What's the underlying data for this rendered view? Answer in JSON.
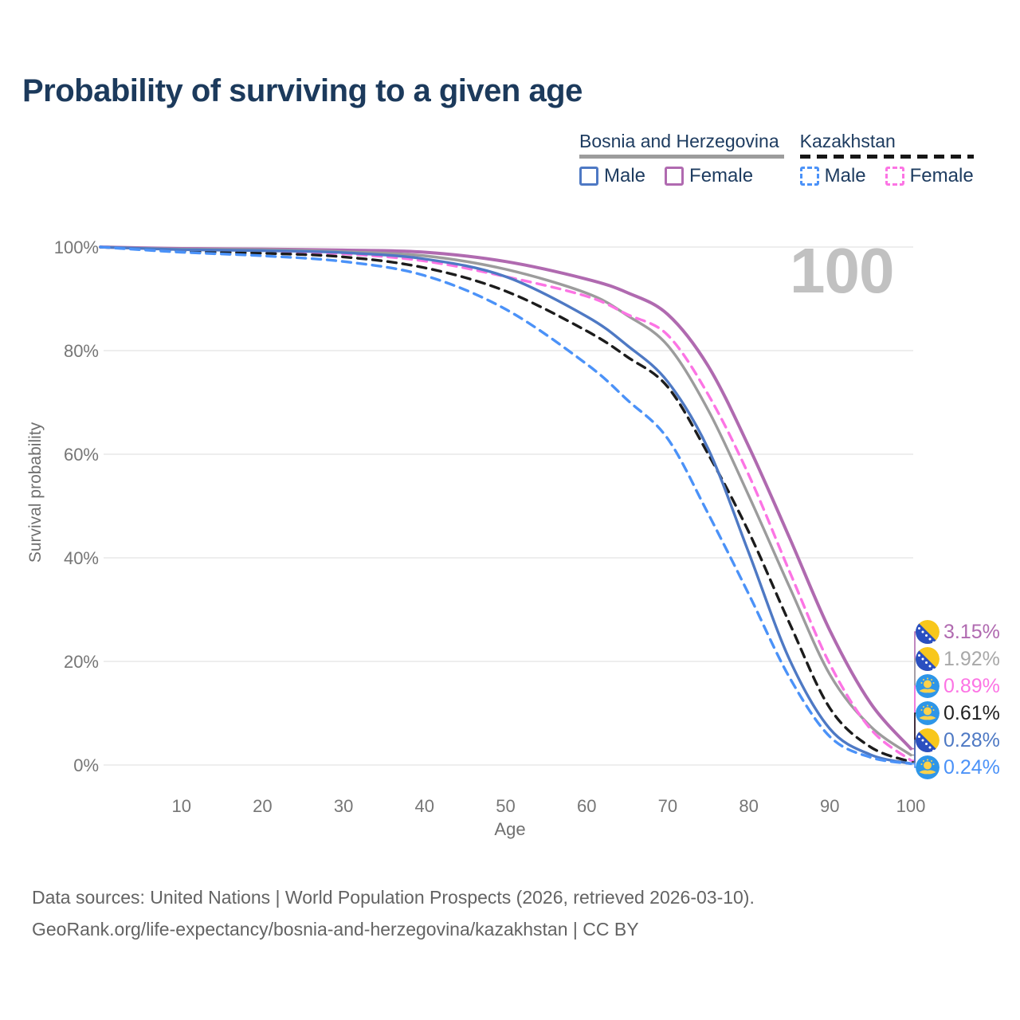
{
  "page": {
    "title": "Probability of surviving to a given age"
  },
  "legend": {
    "groups": [
      {
        "title": "Bosnia and Herzegovina",
        "line_style": "solid",
        "line_color": "#9c9c9c",
        "items": [
          {
            "label": "Male",
            "color": "#4e79c4",
            "dash": false
          },
          {
            "label": "Female",
            "color": "#b06ab0",
            "dash": false
          }
        ]
      },
      {
        "title": "Kazakhstan",
        "line_style": "dashed",
        "line_color": "#161616",
        "items": [
          {
            "label": "Male",
            "color": "#4b92f8",
            "dash": true
          },
          {
            "label": "Female",
            "color": "#fc74e4",
            "dash": true
          }
        ]
      }
    ]
  },
  "chart_data": {
    "type": "line",
    "title": "Probability of surviving to a given age",
    "xlabel": "Age",
    "ylabel": "Survival probability",
    "watermark": "100",
    "xlim": [
      0,
      110
    ],
    "ylim": [
      0,
      100
    ],
    "xticks": [
      10,
      20,
      30,
      40,
      50,
      60,
      70,
      80,
      90,
      100
    ],
    "yticks": [
      0,
      20,
      40,
      60,
      80,
      100
    ],
    "grid": "horizontal",
    "legend_position": "top-right",
    "x": [
      0,
      10,
      20,
      30,
      40,
      50,
      60,
      65,
      70,
      75,
      80,
      85,
      90,
      95,
      100
    ],
    "series": [
      {
        "name": "Bosnia and Herzegovina — Female",
        "color": "#b06ab0",
        "dash": "solid",
        "width": 4,
        "end_label": "3.15%",
        "values": [
          100,
          99.7,
          99.6,
          99.4,
          99.0,
          97.2,
          93.8,
          91.2,
          87.0,
          77.0,
          61.5,
          44.0,
          26.0,
          12.0,
          3.15
        ]
      },
      {
        "name": "Bosnia and Herzegovina — Both sexes",
        "color": "#9c9c9c",
        "dash": "solid",
        "width": 3.4,
        "end_label": "1.92%",
        "values": [
          100,
          99.6,
          99.5,
          99.1,
          98.3,
          95.7,
          91.1,
          86.8,
          81.0,
          68.5,
          52.0,
          34.5,
          17.5,
          7.5,
          1.92
        ]
      },
      {
        "name": "Kazakhstan — Female",
        "color": "#fc74e4",
        "dash": "dashed",
        "width": 3.4,
        "end_label": "0.89%",
        "values": [
          100,
          99.4,
          99.2,
          98.7,
          97.3,
          94.3,
          90.5,
          87.0,
          83.0,
          71.5,
          56.0,
          37.5,
          19.5,
          7.0,
          0.89
        ]
      },
      {
        "name": "Kazakhstan — Both sexes",
        "color": "#1c1c1c",
        "dash": "dashed",
        "width": 3.4,
        "end_label": "0.61%",
        "values": [
          100,
          99.2,
          98.8,
          98.1,
          96.0,
          91.5,
          83.8,
          78.8,
          73.0,
          60.0,
          45.0,
          27.5,
          11.0,
          3.5,
          0.61
        ]
      },
      {
        "name": "Bosnia and Herzegovina — Male",
        "color": "#4e79c4",
        "dash": "solid",
        "width": 3.4,
        "end_label": "0.28%",
        "values": [
          100,
          99.5,
          99.3,
          98.9,
          97.7,
          94.3,
          86.6,
          81.0,
          74.0,
          61.0,
          41.0,
          20.5,
          7.0,
          2.0,
          0.28
        ]
      },
      {
        "name": "Kazakhstan — Male",
        "color": "#4b92f8",
        "dash": "dashed",
        "width": 3.4,
        "end_label": "0.24%",
        "values": [
          100,
          99.0,
          98.3,
          97.2,
          94.5,
          88.0,
          77.4,
          70.5,
          63.0,
          48.5,
          33.0,
          17.0,
          5.5,
          1.5,
          0.24
        ]
      }
    ]
  },
  "end_labels": [
    {
      "flag": "ba",
      "text": "3.15%",
      "color": "#b06ab0"
    },
    {
      "flag": "ba",
      "text": "1.92%",
      "color": "#a8a8a8"
    },
    {
      "flag": "kz",
      "text": "0.89%",
      "color": "#fc74e4"
    },
    {
      "flag": "kz",
      "text": "0.61%",
      "color": "#222222"
    },
    {
      "flag": "ba",
      "text": "0.28%",
      "color": "#4e79c4"
    },
    {
      "flag": "kz",
      "text": "0.24%",
      "color": "#4b92f8"
    }
  ],
  "footer": {
    "line1": "Data sources: United Nations | World Population Prospects (2026, retrieved 2026-03-10).",
    "line2": "GeoRank.org/life-expectancy/bosnia-and-herzegovina/kazakhstan | CC BY"
  }
}
